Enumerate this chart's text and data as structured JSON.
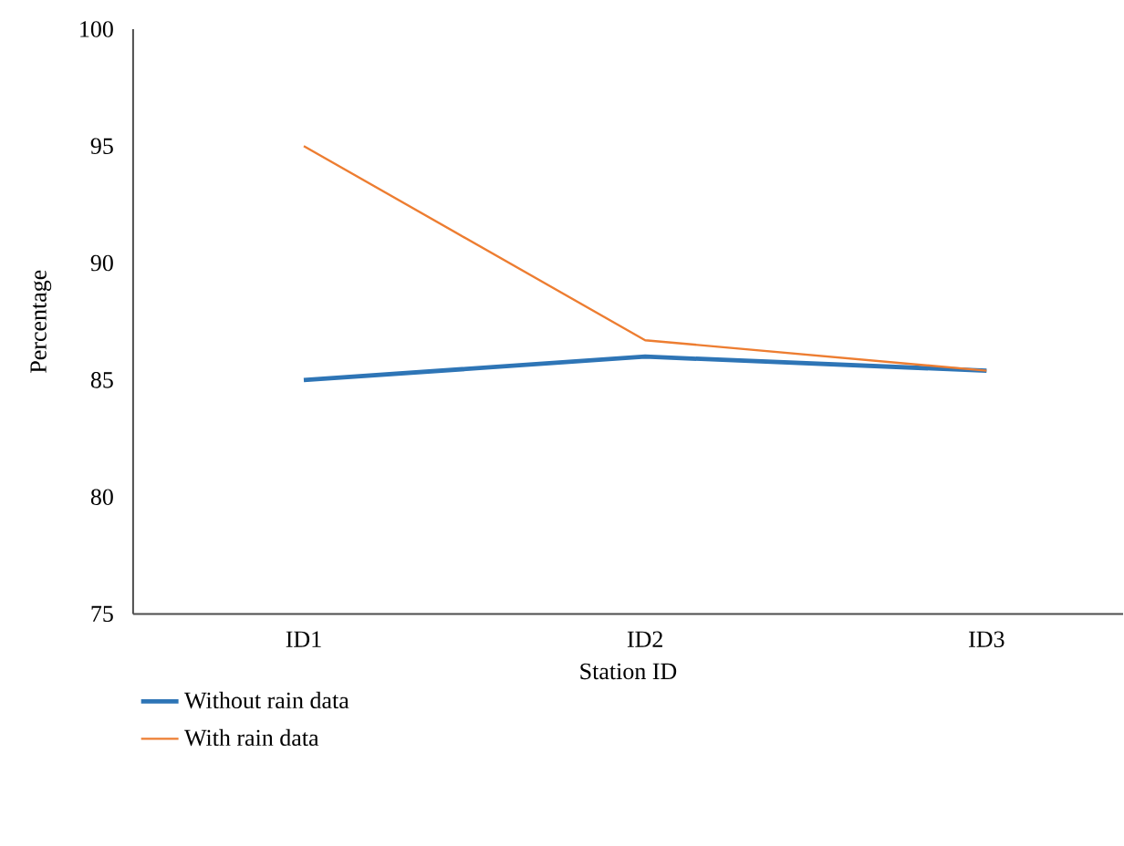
{
  "chart_data": {
    "type": "line",
    "xlabel": "Station ID",
    "ylabel": "Percentage",
    "categories": [
      "ID1",
      "ID2",
      "ID3"
    ],
    "series": [
      {
        "name": "Without rain data",
        "color": "#2e75b6",
        "values": [
          85.0,
          86.0,
          85.4
        ]
      },
      {
        "name": "With rain data",
        "color": "#ed7d31",
        "values": [
          95.0,
          86.7,
          85.4
        ]
      }
    ],
    "ylim": [
      75,
      100
    ],
    "yticks": [
      75,
      80,
      85,
      90,
      95,
      100
    ],
    "grid": false,
    "legend": "bottom",
    "marker": "none",
    "line_style": "solid"
  }
}
